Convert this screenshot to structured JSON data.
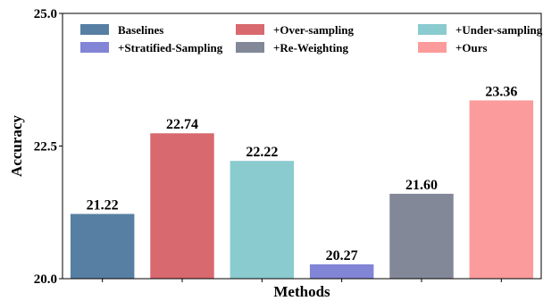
{
  "chart_data": {
    "type": "bar",
    "categories": [
      "Baselines",
      "+Over-sampling",
      "+Under-sampling",
      "+Stratified-Sampling",
      "+Re-Weighting",
      "+Ours"
    ],
    "values": [
      21.22,
      22.74,
      22.22,
      20.27,
      21.6,
      23.36
    ],
    "value_labels": [
      "21.22",
      "22.74",
      "22.22",
      "20.27",
      "21.60",
      "23.36"
    ],
    "colors": [
      "#577fa3",
      "#d8696f",
      "#8acbcf",
      "#8284d6",
      "#828898",
      "#fb9b9b"
    ],
    "xlabel": "Methods",
    "ylabel": "Accuracy",
    "ylim": [
      20.0,
      25.0
    ],
    "yticks": [
      20.0,
      22.5,
      25.0
    ],
    "ytick_labels": [
      "20.0",
      "22.5",
      "25.0"
    ],
    "grid": false,
    "legend": {
      "placement": "top",
      "columns": 3,
      "entries": [
        "Baselines",
        "+Over-sampling",
        "+Under-sampling",
        "+Stratified-Sampling",
        "+Re-Weighting",
        "+Ours"
      ]
    }
  }
}
